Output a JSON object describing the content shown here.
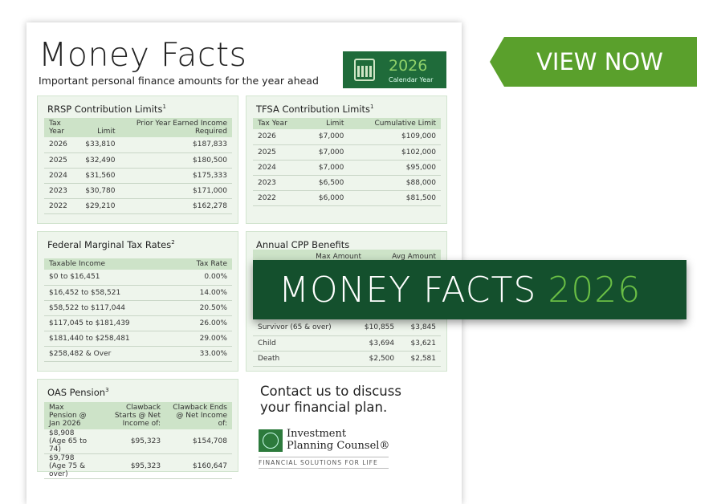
{
  "doc": {
    "title": "Money Facts",
    "subtitle": "Important personal finance amounts for the year ahead",
    "calendar": {
      "year": "2026",
      "label": "Calendar Year"
    }
  },
  "rrsp": {
    "title": "RRSP Contribution Limits",
    "note": "1",
    "headers": [
      "Tax Year",
      "Limit",
      "Prior Year Earned Income Required"
    ],
    "rows": [
      [
        "2026",
        "$33,810",
        "$187,833"
      ],
      [
        "2025",
        "$32,490",
        "$180,500"
      ],
      [
        "2024",
        "$31,560",
        "$175,333"
      ],
      [
        "2023",
        "$30,780",
        "$171,000"
      ],
      [
        "2022",
        "$29,210",
        "$162,278"
      ]
    ]
  },
  "tfsa": {
    "title": "TFSA Contribution Limits",
    "note": "1",
    "headers": [
      "Tax Year",
      "Limit",
      "Cumulative Limit"
    ],
    "rows": [
      [
        "2026",
        "$7,000",
        "$109,000"
      ],
      [
        "2025",
        "$7,000",
        "$102,000"
      ],
      [
        "2024",
        "$7,000",
        "$95,000"
      ],
      [
        "2023",
        "$6,500",
        "$88,000"
      ],
      [
        "2022",
        "$6,000",
        "$81,500"
      ]
    ]
  },
  "fed": {
    "title": "Federal Marginal Tax Rates",
    "note": "2",
    "headers": [
      "Taxable Income",
      "Tax Rate"
    ],
    "rows": [
      [
        "$0 to $16,451",
        "0.00%"
      ],
      [
        "$16,452 to $58,521",
        "14.00%"
      ],
      [
        "$58,522 to $117,044",
        "20.50%"
      ],
      [
        "$117,045 to $181,439",
        "26.00%"
      ],
      [
        "$181,440  to $258,481",
        "29.00%"
      ],
      [
        "$258,482 & Over",
        "33.00%"
      ]
    ]
  },
  "cpp": {
    "title": "Annual CPP Benefits",
    "headers": [
      "",
      "Max Amount",
      "Avg Amount"
    ],
    "rows": [
      [
        "Survivor (65 & over)",
        "$10,855",
        "$3,845"
      ],
      [
        "Child",
        "$3,694",
        "$3,621"
      ],
      [
        "Death",
        "$2,500",
        "$2,581"
      ]
    ]
  },
  "oas": {
    "title": "OAS Pension",
    "note": "3",
    "headers": [
      "Max Pension @ Jan 2026",
      "Clawback Starts @ Net Income of:",
      "Clawback Ends @ Net Income of:"
    ],
    "rows": [
      [
        "$8,908 (Age 65 to 74)",
        "$95,323",
        "$154,708"
      ],
      [
        "$9,798 (Age 75 & over)",
        "$95,323",
        "$160,647"
      ]
    ]
  },
  "contact": {
    "line1": "Contact us to discuss",
    "line2": "your financial plan."
  },
  "logo": {
    "name1": "Investment",
    "name2": "Planning Counsel®",
    "tagline": "FINANCIAL SOLUTIONS FOR LIFE"
  },
  "cta": {
    "label": "VIEW NOW"
  },
  "banner": {
    "text": "MONEY FACTS",
    "year": "2026"
  },
  "colors": {
    "brand_green": "#1f6b3a",
    "cta_green": "#5aa02c",
    "banner_green": "#14502d",
    "accent": "#6abf45"
  }
}
